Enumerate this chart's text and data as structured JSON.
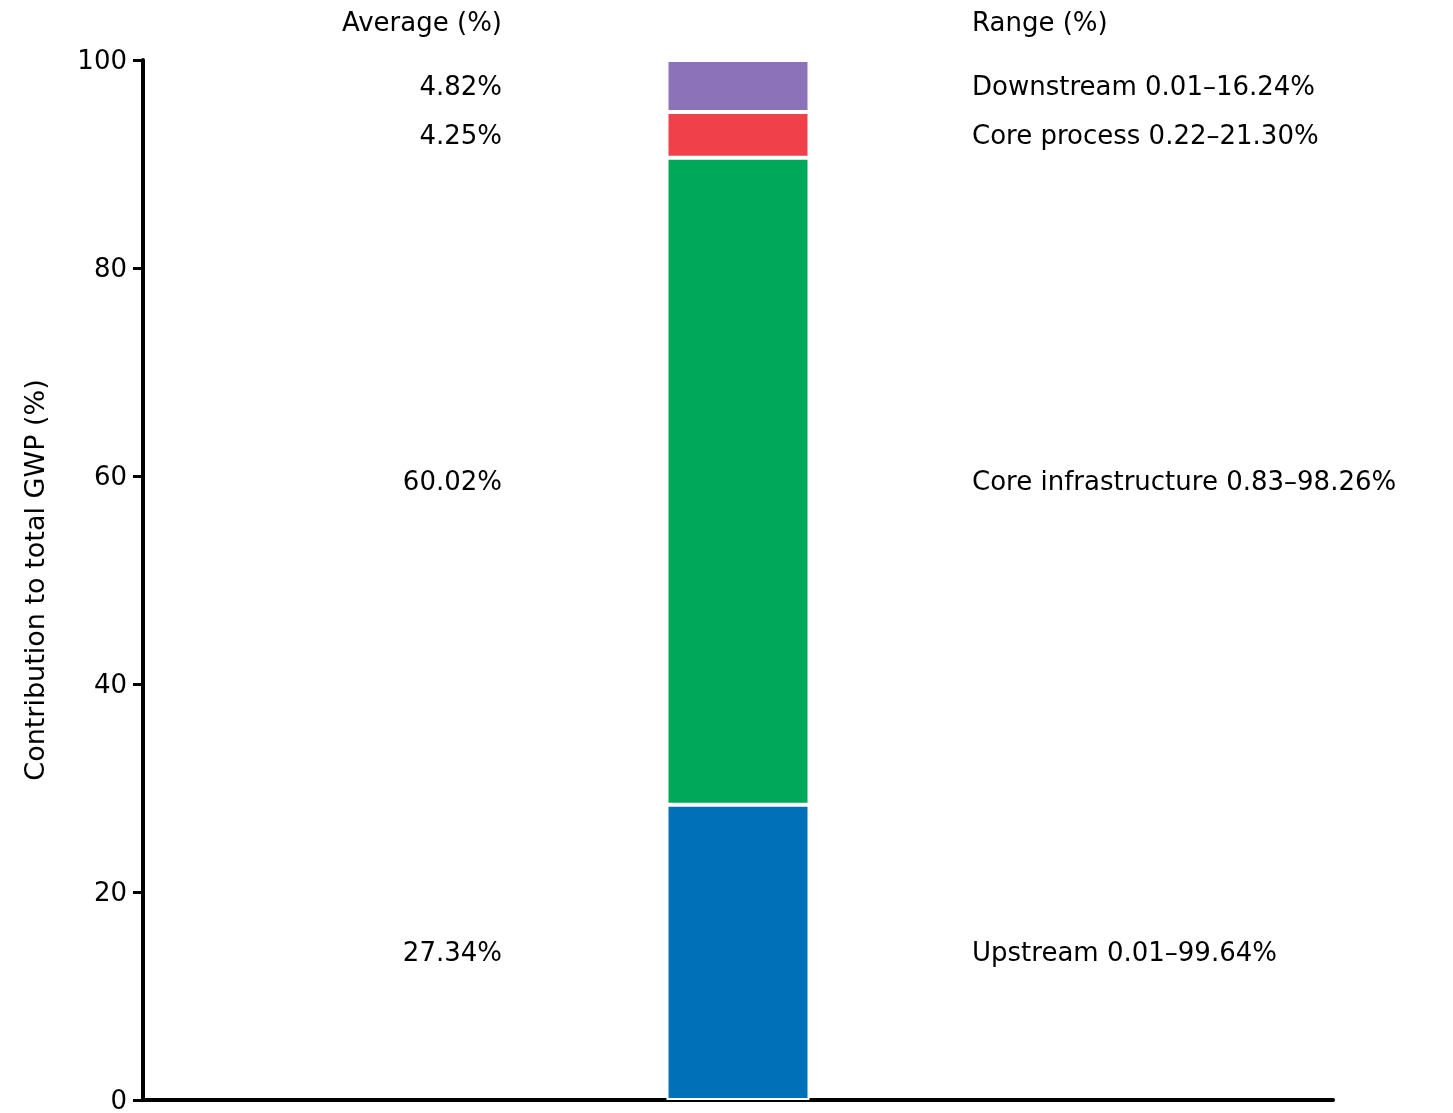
{
  "chart_data": {
    "type": "bar",
    "stacked": true,
    "ylabel": "Contribution to total GWP (%)",
    "categories": [
      null
    ],
    "series": [
      {
        "name": "Upstream 0.01–99.64%",
        "color": "#0070b8",
        "values": [
          28.4
        ]
      },
      {
        "name": "Core infrastructure 0.83–98.26%",
        "color": "#00a859",
        "values": [
          62.2
        ]
      },
      {
        "name": "Core process 0.22–21.30%",
        "color": "#f0404a",
        "values": [
          4.4
        ]
      },
      {
        "name": "Downstream 0.01–16.24%",
        "color": "#8c72b8",
        "values": [
          5.0
        ]
      }
    ],
    "ylim": [
      0,
      100
    ],
    "yticks": [
      0,
      20,
      40,
      60,
      80,
      100
    ],
    "tick_labels": "y",
    "annotations": [
      "Average (%)",
      "Range (%)",
      "27.34%",
      "60.02%",
      "4.25%",
      "4.82%"
    ]
  }
}
